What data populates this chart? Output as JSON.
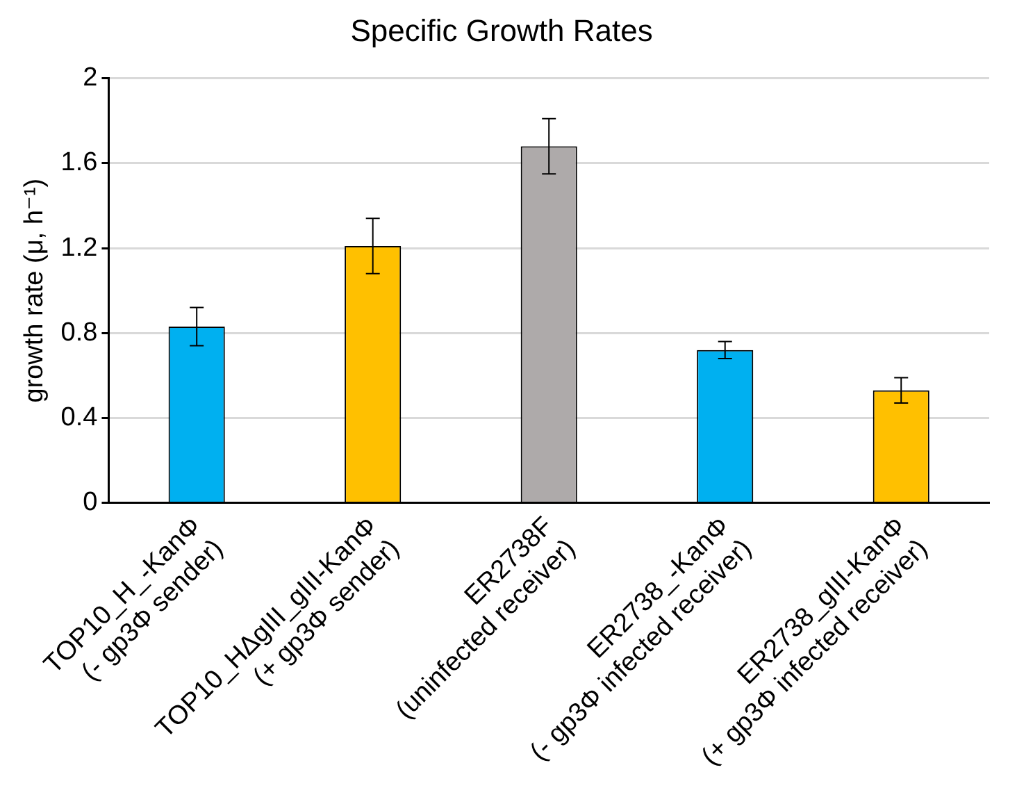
{
  "chart_data": {
    "type": "bar",
    "title": "Specific Growth Rates",
    "ylabel": "growth rate (μ, h⁻¹)",
    "categories": [
      "TOP10_H_-KanΦ\n(- gp3Φ sender)",
      "TOP10_HΔgIII_gIII-KanΦ\n(+ gp3Φ sender)",
      "ER2738F\n(uninfected receiver)",
      "ER2738_-KanΦ\n(- gp3Φ infected receiver)",
      "ER2738_gIII-KanΦ\n(+ gp3Φ infected receiver)"
    ],
    "values": [
      0.83,
      1.21,
      1.68,
      0.72,
      0.53
    ],
    "errors": [
      0.09,
      0.13,
      0.13,
      0.04,
      0.06
    ],
    "colors": [
      "#00b0f0",
      "#ffc000",
      "#aeaaaa",
      "#00b0f0",
      "#ffc000"
    ],
    "ylim": [
      0,
      2
    ],
    "yticks": [
      0,
      0.4,
      0.8,
      1.2,
      1.6,
      2
    ],
    "grid": "y",
    "legend": false
  }
}
